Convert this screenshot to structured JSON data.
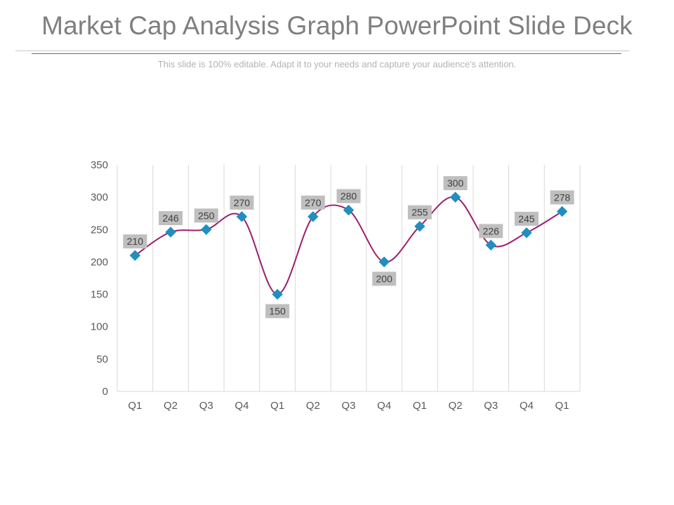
{
  "slide": {
    "title": "Market Cap Analysis Graph PowerPoint Slide Deck",
    "subtitle": "This slide is 100% editable. Adapt it to your needs and capture your audience's attention."
  },
  "colors": {
    "line": "#9c1f6e",
    "marker": "#1f8fc1",
    "label_bg": "#bfbfbf",
    "grid": "#d9d9d9"
  },
  "chart_data": {
    "type": "line",
    "smooth": true,
    "categories": [
      "Q1",
      "Q2",
      "Q3",
      "Q4",
      "Q1",
      "Q2",
      "Q3",
      "Q4",
      "Q1",
      "Q2",
      "Q3",
      "Q4",
      "Q1"
    ],
    "values": [
      210,
      246,
      250,
      270,
      150,
      270,
      280,
      200,
      255,
      300,
      226,
      245,
      278
    ],
    "label_positions": [
      "above",
      "above",
      "above",
      "above",
      "below",
      "above",
      "above",
      "below",
      "above",
      "above",
      "above",
      "above",
      "above"
    ],
    "ylim": [
      0,
      350
    ],
    "yticks": [
      0,
      50,
      100,
      150,
      200,
      250,
      300,
      350
    ],
    "grid": "vertical",
    "legend": "none",
    "marker": "diamond"
  }
}
